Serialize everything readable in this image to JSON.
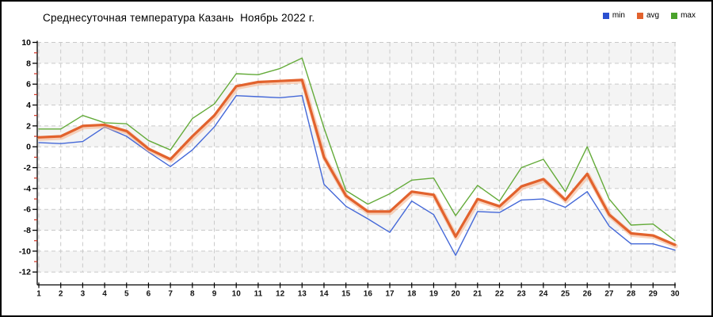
{
  "window": {
    "background": "#ffffff",
    "border_color": "#000000"
  },
  "title": "Среднесуточная температура Казань  Ноябрь 2022 г.",
  "legend": [
    {
      "label": "min",
      "color": "#2b50d0"
    },
    {
      "label": "avg",
      "color": "#e2622d"
    },
    {
      "label": "max",
      "color": "#4aa22b"
    }
  ],
  "chart_data": {
    "type": "line",
    "title": "Среднесуточная температура Казань Ноябрь 2022 г.",
    "xlabel": "",
    "ylabel": "",
    "x": [
      1,
      2,
      3,
      4,
      5,
      6,
      7,
      8,
      9,
      10,
      11,
      12,
      13,
      14,
      15,
      16,
      17,
      18,
      19,
      20,
      21,
      22,
      23,
      24,
      25,
      26,
      27,
      28,
      29,
      30
    ],
    "series": [
      {
        "name": "max",
        "color": "#64ab3a",
        "width": 1.4,
        "values": [
          1.7,
          1.7,
          3.0,
          2.3,
          2.2,
          0.6,
          -0.3,
          2.7,
          4.1,
          7.0,
          6.9,
          7.5,
          8.5,
          1.8,
          -4.2,
          -5.5,
          -4.5,
          -3.2,
          -3.0,
          -6.6,
          -3.7,
          -5.2,
          -2.0,
          -1.2,
          -4.3,
          0.0,
          -5.0,
          -7.5,
          -7.4,
          -9.0
        ]
      },
      {
        "name": "min",
        "color": "#4468d8",
        "width": 1.4,
        "values": [
          0.4,
          0.3,
          0.5,
          1.9,
          1.0,
          -0.5,
          -1.9,
          -0.3,
          1.9,
          4.9,
          4.8,
          4.7,
          4.9,
          -3.6,
          -5.7,
          -6.9,
          -8.2,
          -5.2,
          -6.5,
          -10.4,
          -6.2,
          -6.3,
          -5.1,
          -5.0,
          -5.8,
          -4.3,
          -7.6,
          -9.3,
          -9.3,
          -9.9
        ]
      },
      {
        "name": "avg",
        "color": "#e2622d",
        "width": 3.2,
        "halo": "#f5b089",
        "values": [
          0.9,
          1.0,
          2.0,
          2.1,
          1.5,
          -0.2,
          -1.2,
          1.0,
          3.0,
          5.8,
          6.2,
          6.3,
          6.4,
          -1.0,
          -4.7,
          -6.2,
          -6.2,
          -4.3,
          -4.6,
          -8.6,
          -5.0,
          -5.7,
          -3.8,
          -3.1,
          -5.1,
          -2.6,
          -6.5,
          -8.3,
          -8.5,
          -9.4
        ]
      }
    ],
    "ylim": [
      -12,
      10
    ],
    "y_ticks": [
      10,
      8,
      6,
      4,
      2,
      0,
      -2,
      -4,
      -6,
      -8,
      -10,
      -12
    ],
    "y_minor_ticks": [
      9,
      7,
      5,
      3,
      1,
      -1,
      -3,
      -5,
      -7,
      -9,
      -11
    ],
    "x_tick_labels": [
      "1",
      "2",
      "3",
      "4",
      "5",
      "6",
      "7",
      "8",
      "9",
      "10",
      "11",
      "12",
      "13",
      "14",
      "15",
      "16",
      "17",
      "18",
      "19",
      "20",
      "21",
      "22",
      "23",
      "24",
      "25",
      "26",
      "27",
      "28",
      "29",
      "30"
    ],
    "grid": "dashed",
    "grid_color": "#c9c9c9",
    "band_colors": [
      "#f4f4f4",
      "#ffffff"
    ],
    "axis_color": "#000000",
    "minor_tick_color": "#d03020",
    "legend_position": "top-right",
    "legend_entries": [
      "min",
      "avg",
      "max"
    ]
  }
}
